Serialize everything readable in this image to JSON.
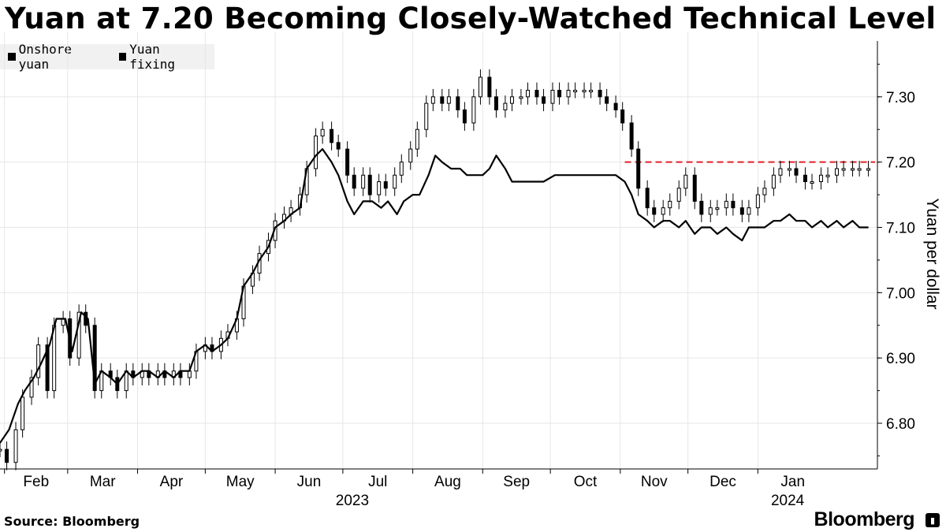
{
  "header": {
    "title": "Yuan at 7.20 Becoming Closely-Watched Technical Level"
  },
  "footer": {
    "source": "Source: Bloomberg",
    "brand": "Bloomberg"
  },
  "colors": {
    "line": "#000000",
    "threshold": "#e0212b",
    "grid": "#e6e6e6"
  },
  "chart_data": {
    "type": "line",
    "title": "Yuan at 7.20 Becoming Closely-Watched Technical Level",
    "ylabel": "Yuan per dollar",
    "ylim": [
      6.73,
      7.4
    ],
    "yticks": [
      6.8,
      6.9,
      7.0,
      7.1,
      7.2,
      7.3
    ],
    "ytick_labels": [
      "6.80",
      "6.90",
      "7.00",
      "7.10",
      "7.20",
      "7.30"
    ],
    "x_range": [
      "2023-01-30",
      "2024-02-23"
    ],
    "month_ticks": [
      {
        "label": "Feb",
        "date": "2023-02-01"
      },
      {
        "label": "Mar",
        "date": "2023-03-01"
      },
      {
        "label": "Apr",
        "date": "2023-04-01"
      },
      {
        "label": "May",
        "date": "2023-05-01"
      },
      {
        "label": "Jun",
        "date": "2023-06-01"
      },
      {
        "label": "Jul",
        "date": "2023-07-01"
      },
      {
        "label": "Aug",
        "date": "2023-08-01"
      },
      {
        "label": "Sep",
        "date": "2023-09-01"
      },
      {
        "label": "Oct",
        "date": "2023-10-01"
      },
      {
        "label": "Nov",
        "date": "2023-11-01"
      },
      {
        "label": "Dec",
        "date": "2023-12-01"
      },
      {
        "label": "Jan",
        "date": "2024-01-01"
      }
    ],
    "year_labels": [
      {
        "label": "2023",
        "date": "2023-07-01"
      },
      {
        "label": "2024",
        "date": "2024-01-10"
      }
    ],
    "grid": true,
    "legend_position": "top-left",
    "legend": [
      "Onshore yuan",
      "Yuan fixing"
    ],
    "threshold": {
      "value": 7.2,
      "from": "2023-11-03",
      "to": "2024-02-22",
      "style": "dashed"
    },
    "series": [
      {
        "name": "Onshore yuan",
        "style": "candlestick",
        "points": [
          [
            "2023-01-30",
            6.76
          ],
          [
            "2023-02-02",
            6.74
          ],
          [
            "2023-02-06",
            6.79
          ],
          [
            "2023-02-09",
            6.84
          ],
          [
            "2023-02-13",
            6.87
          ],
          [
            "2023-02-16",
            6.92
          ],
          [
            "2023-02-20",
            6.85
          ],
          [
            "2023-02-23",
            6.95
          ],
          [
            "2023-02-27",
            6.96
          ],
          [
            "2023-03-02",
            6.9
          ],
          [
            "2023-03-06",
            6.97
          ],
          [
            "2023-03-09",
            6.95
          ],
          [
            "2023-03-13",
            6.85
          ],
          [
            "2023-03-16",
            6.88
          ],
          [
            "2023-03-20",
            6.87
          ],
          [
            "2023-03-23",
            6.85
          ],
          [
            "2023-03-27",
            6.88
          ],
          [
            "2023-03-30",
            6.87
          ],
          [
            "2023-04-03",
            6.88
          ],
          [
            "2023-04-06",
            6.87
          ],
          [
            "2023-04-10",
            6.88
          ],
          [
            "2023-04-13",
            6.87
          ],
          [
            "2023-04-17",
            6.88
          ],
          [
            "2023-04-20",
            6.87
          ],
          [
            "2023-04-24",
            6.88
          ],
          [
            "2023-04-27",
            6.91
          ],
          [
            "2023-05-01",
            6.92
          ],
          [
            "2023-05-04",
            6.91
          ],
          [
            "2023-05-08",
            6.93
          ],
          [
            "2023-05-11",
            6.94
          ],
          [
            "2023-05-15",
            6.96
          ],
          [
            "2023-05-18",
            7.01
          ],
          [
            "2023-05-22",
            7.03
          ],
          [
            "2023-05-25",
            7.06
          ],
          [
            "2023-05-29",
            7.08
          ],
          [
            "2023-06-01",
            7.11
          ],
          [
            "2023-06-05",
            7.12
          ],
          [
            "2023-06-08",
            7.13
          ],
          [
            "2023-06-12",
            7.15
          ],
          [
            "2023-06-15",
            7.19
          ],
          [
            "2023-06-19",
            7.24
          ],
          [
            "2023-06-22",
            7.25
          ],
          [
            "2023-06-26",
            7.23
          ],
          [
            "2023-06-29",
            7.22
          ],
          [
            "2023-07-03",
            7.18
          ],
          [
            "2023-07-06",
            7.16
          ],
          [
            "2023-07-10",
            7.18
          ],
          [
            "2023-07-13",
            7.15
          ],
          [
            "2023-07-17",
            7.17
          ],
          [
            "2023-07-20",
            7.16
          ],
          [
            "2023-07-24",
            7.18
          ],
          [
            "2023-07-27",
            7.2
          ],
          [
            "2023-07-31",
            7.22
          ],
          [
            "2023-08-03",
            7.25
          ],
          [
            "2023-08-07",
            7.29
          ],
          [
            "2023-08-10",
            7.3
          ],
          [
            "2023-08-14",
            7.29
          ],
          [
            "2023-08-17",
            7.3
          ],
          [
            "2023-08-21",
            7.28
          ],
          [
            "2023-08-24",
            7.26
          ],
          [
            "2023-08-28",
            7.3
          ],
          [
            "2023-08-31",
            7.33
          ],
          [
            "2023-09-04",
            7.3
          ],
          [
            "2023-09-07",
            7.28
          ],
          [
            "2023-09-11",
            7.29
          ],
          [
            "2023-09-14",
            7.3
          ],
          [
            "2023-09-18",
            7.3
          ],
          [
            "2023-09-21",
            7.31
          ],
          [
            "2023-09-25",
            7.3
          ],
          [
            "2023-09-28",
            7.29
          ],
          [
            "2023-10-02",
            7.31
          ],
          [
            "2023-10-05",
            7.3
          ],
          [
            "2023-10-09",
            7.31
          ],
          [
            "2023-10-12",
            7.31
          ],
          [
            "2023-10-16",
            7.31
          ],
          [
            "2023-10-19",
            7.31
          ],
          [
            "2023-10-23",
            7.3
          ],
          [
            "2023-10-26",
            7.29
          ],
          [
            "2023-10-30",
            7.28
          ],
          [
            "2023-11-02",
            7.26
          ],
          [
            "2023-11-06",
            7.22
          ],
          [
            "2023-11-09",
            7.16
          ],
          [
            "2023-11-13",
            7.13
          ],
          [
            "2023-11-16",
            7.12
          ],
          [
            "2023-11-20",
            7.13
          ],
          [
            "2023-11-23",
            7.14
          ],
          [
            "2023-11-27",
            7.16
          ],
          [
            "2023-11-30",
            7.18
          ],
          [
            "2023-12-04",
            7.14
          ],
          [
            "2023-12-07",
            7.12
          ],
          [
            "2023-12-11",
            7.13
          ],
          [
            "2023-12-14",
            7.13
          ],
          [
            "2023-12-18",
            7.14
          ],
          [
            "2023-12-21",
            7.13
          ],
          [
            "2023-12-25",
            7.12
          ],
          [
            "2023-12-28",
            7.13
          ],
          [
            "2024-01-01",
            7.15
          ],
          [
            "2024-01-04",
            7.16
          ],
          [
            "2024-01-08",
            7.18
          ],
          [
            "2024-01-11",
            7.19
          ],
          [
            "2024-01-15",
            7.19
          ],
          [
            "2024-01-18",
            7.18
          ],
          [
            "2024-01-22",
            7.17
          ],
          [
            "2024-01-25",
            7.17
          ],
          [
            "2024-01-29",
            7.18
          ],
          [
            "2024-02-01",
            7.18
          ],
          [
            "2024-02-05",
            7.19
          ],
          [
            "2024-02-08",
            7.19
          ],
          [
            "2024-02-12",
            7.19
          ],
          [
            "2024-02-15",
            7.19
          ],
          [
            "2024-02-19",
            7.19
          ]
        ]
      },
      {
        "name": "Yuan fixing",
        "style": "line",
        "points": [
          [
            "2023-01-30",
            6.77
          ],
          [
            "2023-02-03",
            6.79
          ],
          [
            "2023-02-07",
            6.83
          ],
          [
            "2023-02-10",
            6.85
          ],
          [
            "2023-02-14",
            6.87
          ],
          [
            "2023-02-17",
            6.89
          ],
          [
            "2023-02-21",
            6.92
          ],
          [
            "2023-02-24",
            6.96
          ],
          [
            "2023-02-28",
            6.96
          ],
          [
            "2023-03-03",
            6.91
          ],
          [
            "2023-03-07",
            6.97
          ],
          [
            "2023-03-10",
            6.96
          ],
          [
            "2023-03-13",
            6.86
          ],
          [
            "2023-03-16",
            6.88
          ],
          [
            "2023-03-20",
            6.87
          ],
          [
            "2023-03-23",
            6.86
          ],
          [
            "2023-03-27",
            6.88
          ],
          [
            "2023-03-30",
            6.87
          ],
          [
            "2023-04-03",
            6.88
          ],
          [
            "2023-04-06",
            6.88
          ],
          [
            "2023-04-10",
            6.87
          ],
          [
            "2023-04-13",
            6.88
          ],
          [
            "2023-04-17",
            6.87
          ],
          [
            "2023-04-20",
            6.88
          ],
          [
            "2023-04-24",
            6.88
          ],
          [
            "2023-04-27",
            6.91
          ],
          [
            "2023-05-01",
            6.92
          ],
          [
            "2023-05-04",
            6.91
          ],
          [
            "2023-05-08",
            6.92
          ],
          [
            "2023-05-11",
            6.93
          ],
          [
            "2023-05-15",
            6.96
          ],
          [
            "2023-05-18",
            7.01
          ],
          [
            "2023-05-22",
            7.03
          ],
          [
            "2023-05-25",
            7.05
          ],
          [
            "2023-05-29",
            7.07
          ],
          [
            "2023-06-01",
            7.1
          ],
          [
            "2023-06-05",
            7.11
          ],
          [
            "2023-06-08",
            7.12
          ],
          [
            "2023-06-12",
            7.13
          ],
          [
            "2023-06-15",
            7.19
          ],
          [
            "2023-06-19",
            7.21
          ],
          [
            "2023-06-22",
            7.22
          ],
          [
            "2023-06-26",
            7.2
          ],
          [
            "2023-06-29",
            7.18
          ],
          [
            "2023-07-03",
            7.14
          ],
          [
            "2023-07-06",
            7.12
          ],
          [
            "2023-07-10",
            7.14
          ],
          [
            "2023-07-14",
            7.14
          ],
          [
            "2023-07-18",
            7.13
          ],
          [
            "2023-07-21",
            7.14
          ],
          [
            "2023-07-25",
            7.12
          ],
          [
            "2023-07-28",
            7.14
          ],
          [
            "2023-08-01",
            7.15
          ],
          [
            "2023-08-04",
            7.15
          ],
          [
            "2023-08-08",
            7.18
          ],
          [
            "2023-08-11",
            7.21
          ],
          [
            "2023-08-14",
            7.2
          ],
          [
            "2023-08-18",
            7.19
          ],
          [
            "2023-08-22",
            7.19
          ],
          [
            "2023-08-25",
            7.18
          ],
          [
            "2023-08-29",
            7.18
          ],
          [
            "2023-09-01",
            7.18
          ],
          [
            "2023-09-04",
            7.19
          ],
          [
            "2023-09-07",
            7.21
          ],
          [
            "2023-09-11",
            7.19
          ],
          [
            "2023-09-14",
            7.17
          ],
          [
            "2023-09-18",
            7.17
          ],
          [
            "2023-09-21",
            7.17
          ],
          [
            "2023-09-25",
            7.17
          ],
          [
            "2023-09-28",
            7.17
          ],
          [
            "2023-10-03",
            7.18
          ],
          [
            "2023-10-09",
            7.18
          ],
          [
            "2023-10-16",
            7.18
          ],
          [
            "2023-10-23",
            7.18
          ],
          [
            "2023-10-30",
            7.18
          ],
          [
            "2023-11-03",
            7.17
          ],
          [
            "2023-11-06",
            7.15
          ],
          [
            "2023-11-09",
            7.12
          ],
          [
            "2023-11-13",
            7.11
          ],
          [
            "2023-11-16",
            7.1
          ],
          [
            "2023-11-20",
            7.11
          ],
          [
            "2023-11-23",
            7.11
          ],
          [
            "2023-11-27",
            7.1
          ],
          [
            "2023-11-30",
            7.11
          ],
          [
            "2023-12-04",
            7.09
          ],
          [
            "2023-12-07",
            7.1
          ],
          [
            "2023-12-11",
            7.1
          ],
          [
            "2023-12-14",
            7.09
          ],
          [
            "2023-12-18",
            7.1
          ],
          [
            "2023-12-21",
            7.09
          ],
          [
            "2023-12-25",
            7.08
          ],
          [
            "2023-12-28",
            7.1
          ],
          [
            "2024-01-01",
            7.1
          ],
          [
            "2024-01-04",
            7.1
          ],
          [
            "2024-01-08",
            7.11
          ],
          [
            "2024-01-11",
            7.11
          ],
          [
            "2024-01-15",
            7.12
          ],
          [
            "2024-01-18",
            7.11
          ],
          [
            "2024-01-22",
            7.11
          ],
          [
            "2024-01-25",
            7.1
          ],
          [
            "2024-01-29",
            7.11
          ],
          [
            "2024-02-01",
            7.1
          ],
          [
            "2024-02-05",
            7.11
          ],
          [
            "2024-02-08",
            7.1
          ],
          [
            "2024-02-12",
            7.11
          ],
          [
            "2024-02-15",
            7.1
          ],
          [
            "2024-02-19",
            7.1
          ]
        ]
      }
    ]
  }
}
